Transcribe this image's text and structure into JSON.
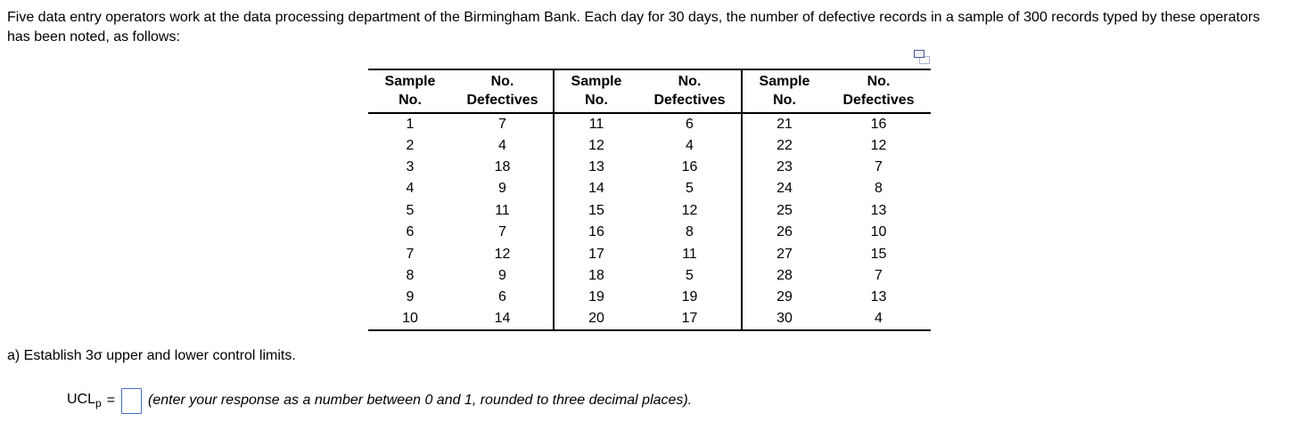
{
  "problem": {
    "intro": "Five data entry operators work at the data processing department of the Birmingham Bank. Each day for 30 days, the number of defective records in a sample of 300 records typed by these operators has been noted, as follows:",
    "part_a": "a) Establish 3σ upper and lower control limits.",
    "answer": {
      "label_base": "UCL",
      "label_sub": "p",
      "equals": "=",
      "input_value": "",
      "hint": "(enter your response as a number between 0 and 1, rounded to three decimal places)."
    }
  },
  "table": {
    "header": {
      "sample_line1": "Sample",
      "sample_line2": "No.",
      "defectives_line1": "No.",
      "defectives_line2": "Defectives"
    },
    "sections": [
      {
        "rows": [
          [
            1,
            7
          ],
          [
            2,
            4
          ],
          [
            3,
            18
          ],
          [
            4,
            9
          ],
          [
            5,
            11
          ],
          [
            6,
            7
          ],
          [
            7,
            12
          ],
          [
            8,
            9
          ],
          [
            9,
            6
          ],
          [
            10,
            14
          ]
        ]
      },
      {
        "rows": [
          [
            11,
            6
          ],
          [
            12,
            4
          ],
          [
            13,
            16
          ],
          [
            14,
            5
          ],
          [
            15,
            12
          ],
          [
            16,
            8
          ],
          [
            17,
            11
          ],
          [
            18,
            5
          ],
          [
            19,
            19
          ],
          [
            20,
            17
          ]
        ]
      },
      {
        "rows": [
          [
            21,
            16
          ],
          [
            22,
            12
          ],
          [
            23,
            7
          ],
          [
            24,
            8
          ],
          [
            25,
            13
          ],
          [
            26,
            10
          ],
          [
            27,
            15
          ],
          [
            28,
            7
          ],
          [
            29,
            13
          ],
          [
            30,
            4
          ]
        ]
      }
    ],
    "icons": {
      "copy": "copy-icon"
    }
  },
  "colors": {
    "text": "#000000",
    "input_border": "#4a6fc9",
    "copy_icon_front": "#42589c",
    "copy_icon_back": "#aab4d8"
  }
}
